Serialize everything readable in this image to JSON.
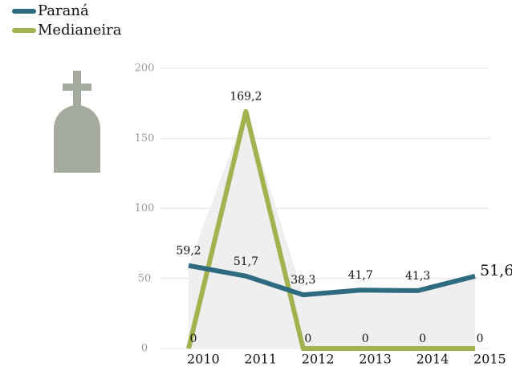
{
  "chart_data": {
    "type": "line",
    "categories": [
      "2010",
      "2011",
      "2012",
      "2013",
      "2014",
      "2015"
    ],
    "series": [
      {
        "name": "Paraná",
        "color": "#2e6b80",
        "values": [
          59.2,
          51.7,
          38.3,
          41.7,
          41.3,
          51.6
        ],
        "value_labels": [
          "59,2",
          "51,7",
          "38,3",
          "41,7",
          "41,3",
          "51,6"
        ]
      },
      {
        "name": "Medianeira",
        "color": "#a3b24e",
        "values": [
          0,
          169.2,
          0,
          0,
          0,
          0
        ],
        "value_labels": [
          "0",
          "169,2",
          "0",
          "0",
          "0",
          "0"
        ]
      }
    ],
    "ylim": [
      0,
      200
    ],
    "yticks": [
      0,
      50,
      100,
      150,
      200
    ],
    "grid": true
  }
}
